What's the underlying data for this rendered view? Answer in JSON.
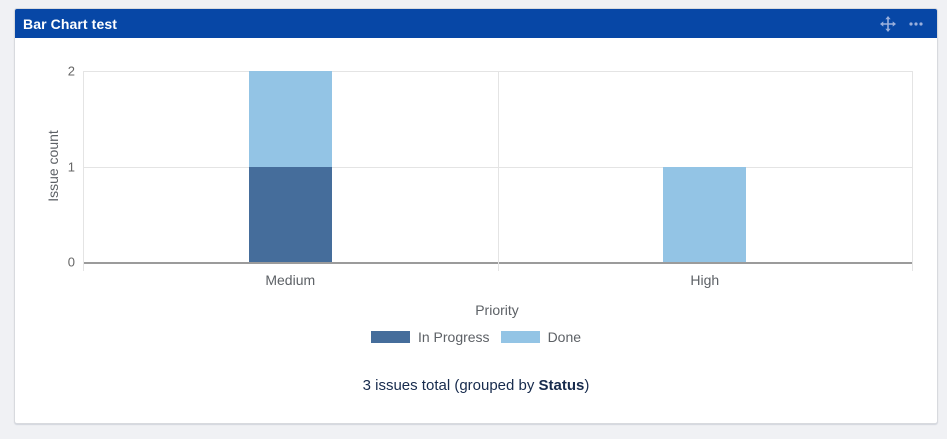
{
  "gadget": {
    "title": "Bar Chart test",
    "icons": {
      "move": "move-icon",
      "more_options": "ellipsis-icon"
    }
  },
  "chart_data": {
    "type": "bar",
    "stacked": true,
    "title": "",
    "categories": [
      "Medium",
      "High"
    ],
    "series": [
      {
        "name": "In Progress",
        "color": "#456D9B",
        "values": [
          1,
          0
        ]
      },
      {
        "name": "Done",
        "color": "#93C4E5",
        "values": [
          1,
          1
        ]
      }
    ],
    "xlabel": "Priority",
    "ylabel": "Issue count",
    "ylim": [
      0,
      2
    ],
    "yticks": [
      0,
      1,
      2
    ],
    "grid": true,
    "legend_position": "bottom"
  },
  "summary": {
    "prefix": "3 issues total (grouped by ",
    "bold": "Status",
    "suffix": ")"
  },
  "colors": {
    "page_bg": "#F0F1F4",
    "card_bg": "#FFFFFF",
    "header_bg": "#0747A6",
    "header_text": "#FFFFFF",
    "header_icon": "#9BB0DC",
    "grid_line": "#E4E4E4",
    "axis_line": "#9B9B9B",
    "tick_text": "#666666",
    "axis_text": "#5D6166",
    "summary_text": "#172B4D"
  }
}
